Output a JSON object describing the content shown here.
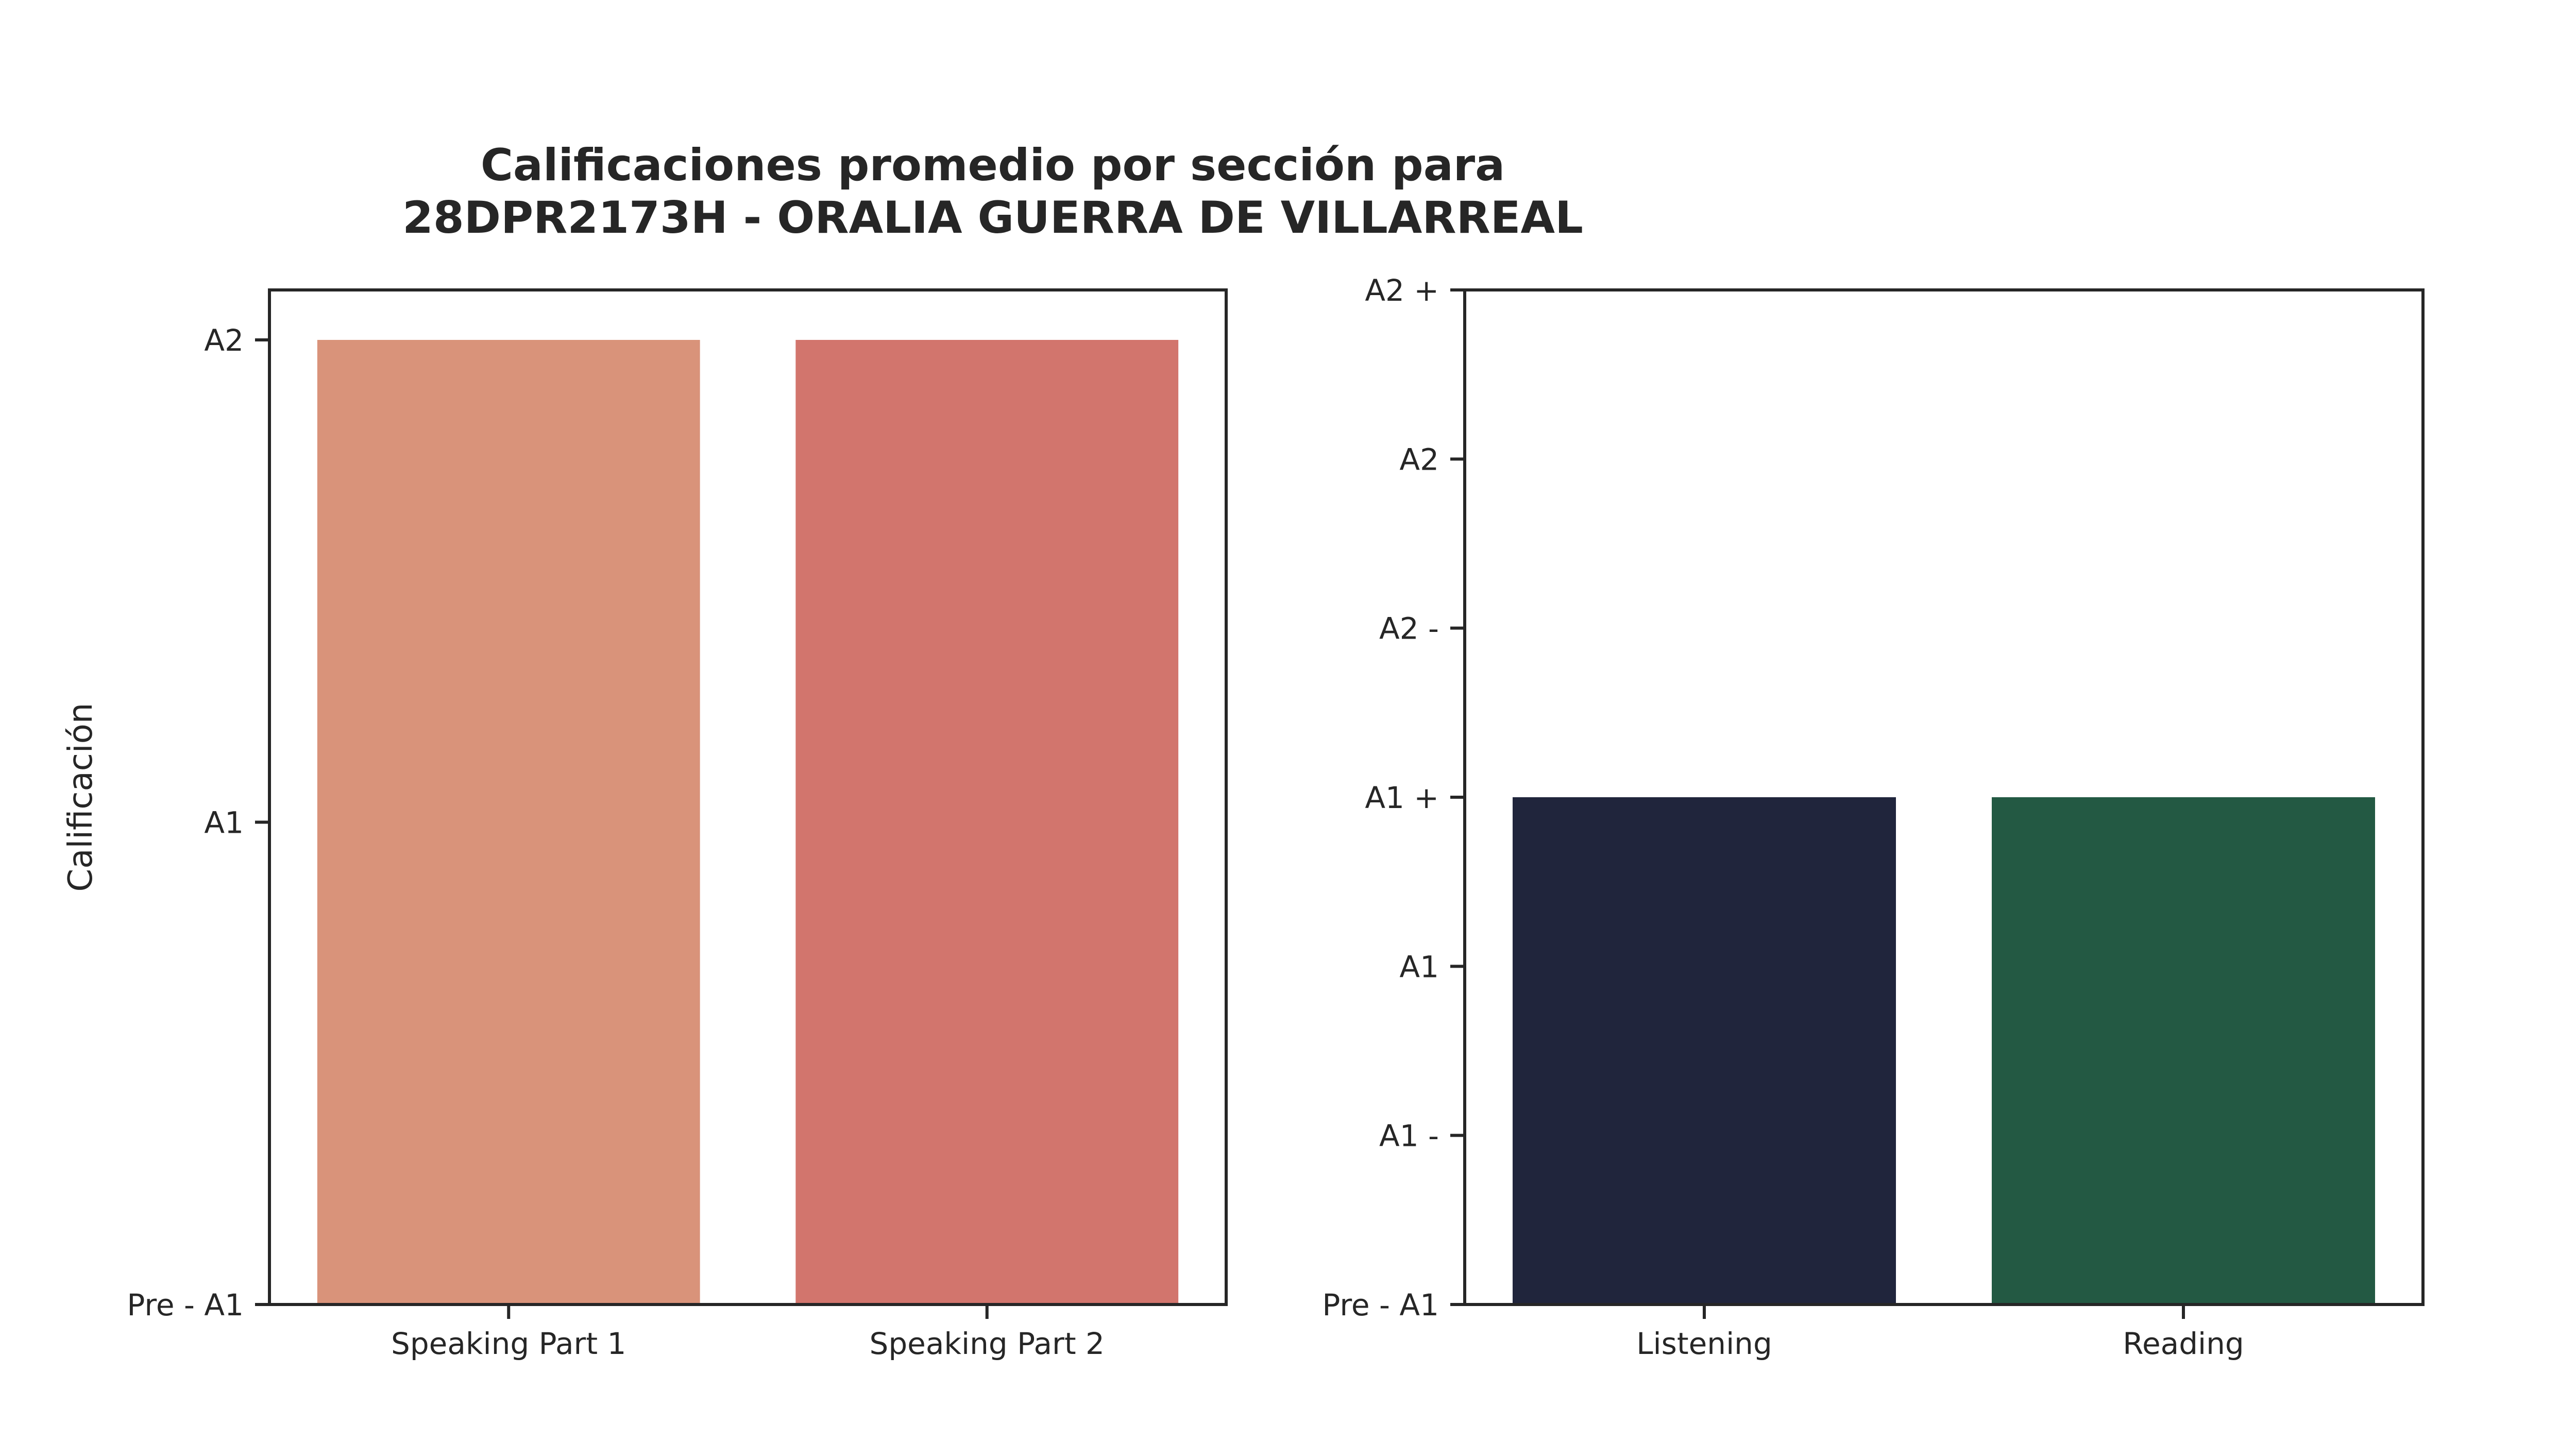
{
  "title_lines": [
    "Calificaciones promedio por sección para",
    "28DPR2173H - ORALIA GUERRA DE VILLARREAL"
  ],
  "chart_data": [
    {
      "type": "bar",
      "categories": [
        "Speaking Part 1",
        "Speaking Part 2"
      ],
      "values": [
        2,
        2
      ],
      "value_scale": "ordinal index of y tick labels (0 = Pre - A1)",
      "ylabel": "Calificación",
      "xlabel": "",
      "ylim": [
        0,
        2
      ],
      "y_ticks": [
        {
          "value": 0,
          "label": "Pre - A1"
        },
        {
          "value": 1,
          "label": "A1"
        },
        {
          "value": 2,
          "label": "A2"
        }
      ],
      "colors": [
        "#d9937a",
        "#d2756d"
      ],
      "grid": false
    },
    {
      "type": "bar",
      "categories": [
        "Listening",
        "Reading"
      ],
      "values": [
        3,
        3
      ],
      "value_scale": "ordinal index of y tick labels (0 = Pre - A1)",
      "ylabel": "",
      "xlabel": "",
      "ylim": [
        0,
        6
      ],
      "y_ticks": [
        {
          "value": 0,
          "label": "Pre - A1"
        },
        {
          "value": 1,
          "label": "A1 -"
        },
        {
          "value": 2,
          "label": "A1"
        },
        {
          "value": 3,
          "label": "A1 +"
        },
        {
          "value": 4,
          "label": "A2 -"
        },
        {
          "value": 5,
          "label": "A2"
        },
        {
          "value": 6,
          "label": "A2 +"
        }
      ],
      "colors": [
        "#20253c",
        "#235943"
      ],
      "grid": false
    }
  ]
}
